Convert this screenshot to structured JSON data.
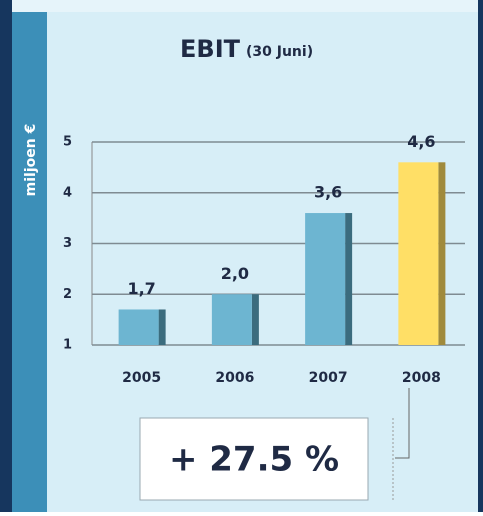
{
  "chart_data": {
    "type": "bar",
    "title": "EBIT",
    "subtitle": "(30 Juni)",
    "y_label": "miljoen €",
    "categories": [
      "2005",
      "2006",
      "2007",
      "2008"
    ],
    "values": [
      1.7,
      2.0,
      3.6,
      4.6
    ],
    "value_labels": [
      "1,7",
      "2,0",
      "3,6",
      "4,6"
    ],
    "colors": [
      "#6db5d1",
      "#6db5d1",
      "#6db5d1",
      "#ffdf66"
    ],
    "ylim": [
      1,
      5
    ],
    "yticks": [
      1,
      2,
      3,
      4,
      5
    ],
    "grid": true,
    "annotation": "+ 27.5 %"
  }
}
